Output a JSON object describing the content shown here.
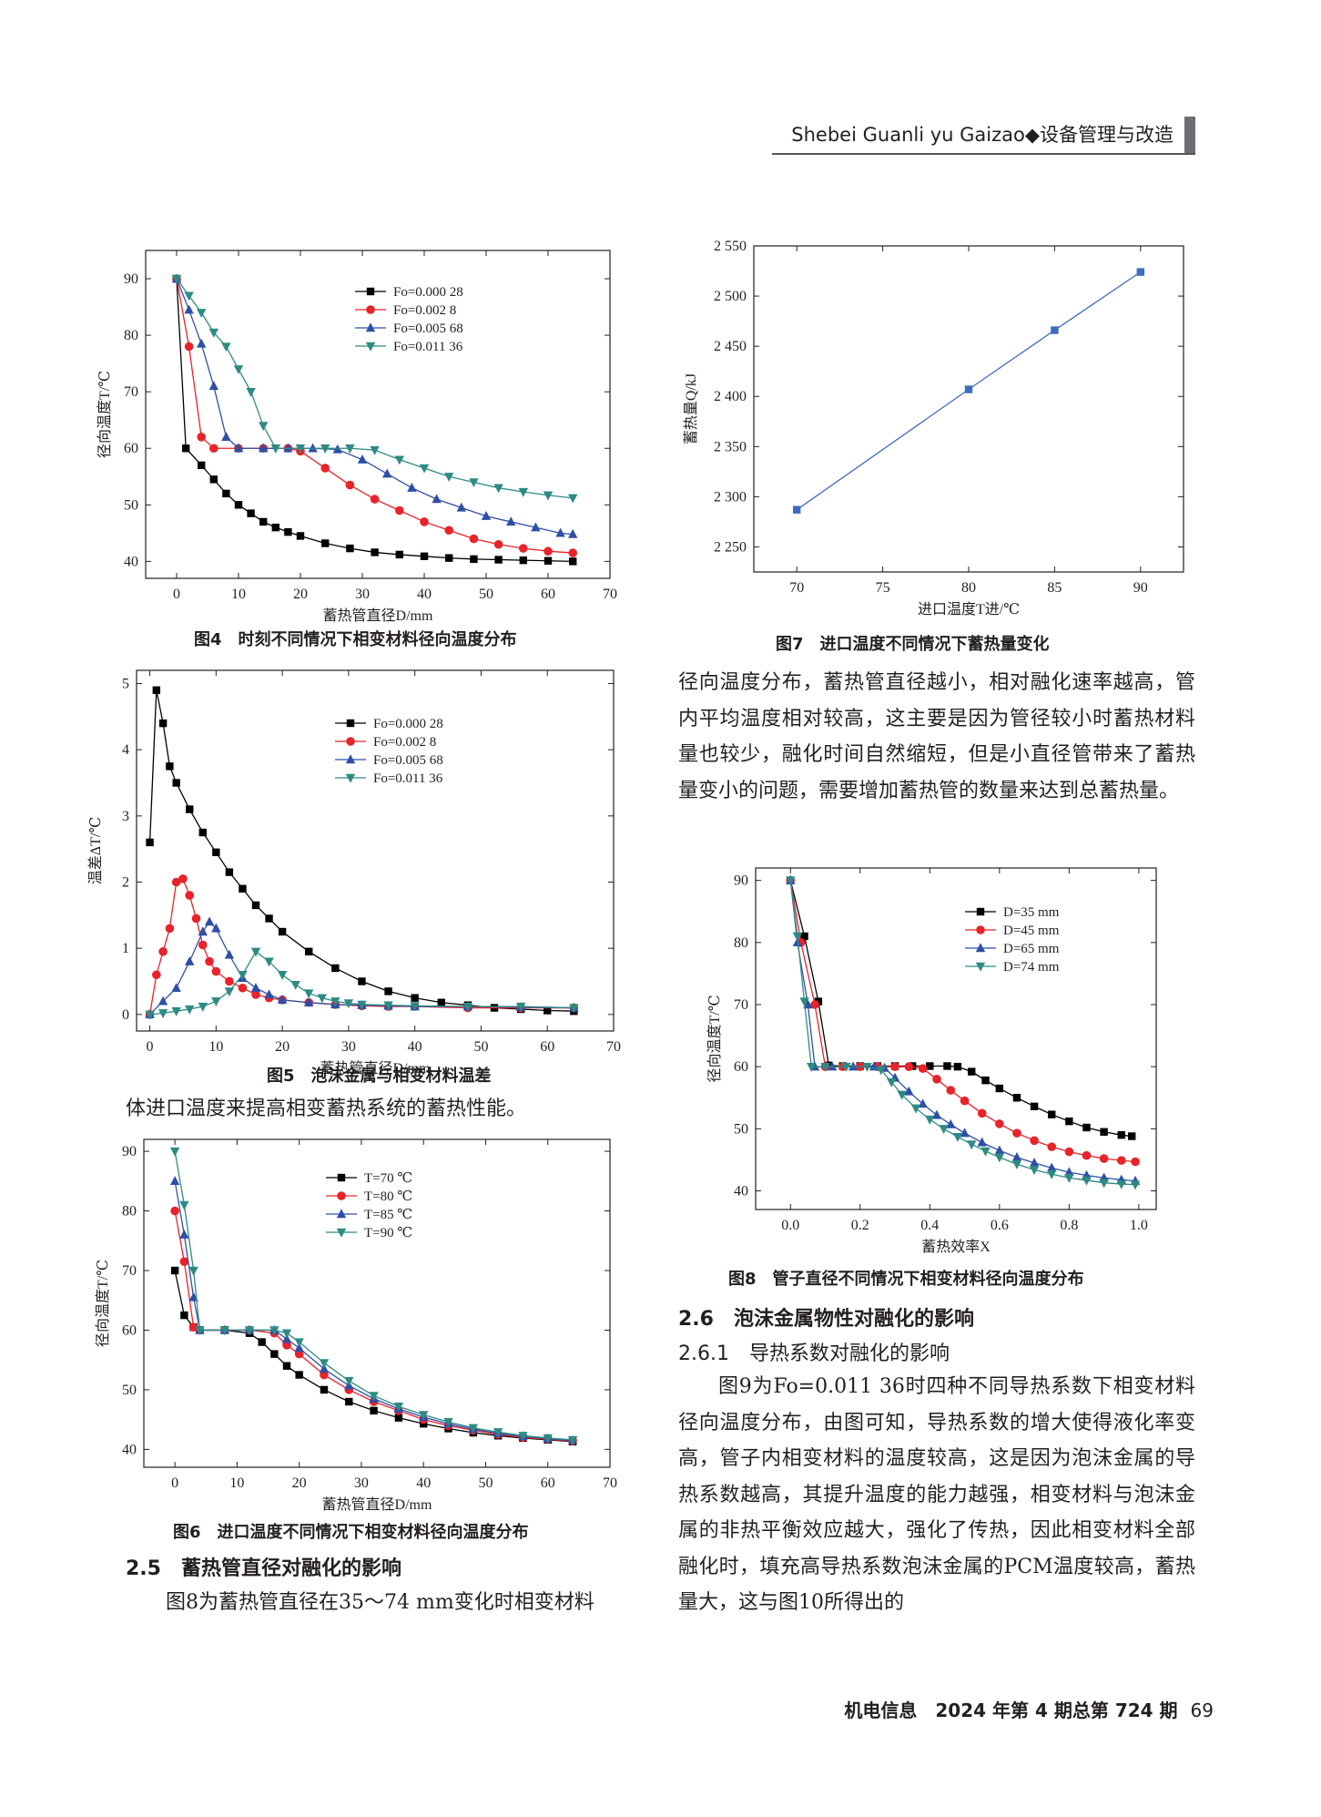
{
  "header": {
    "journal": "Shebei Guanli yu Gaizao◆设备管理与改造"
  },
  "figures": {
    "fig4": {
      "caption": "图4　时刻不同情况下相变材料径向温度分布"
    },
    "fig5": {
      "caption": "图5　泡沫金属与相变材料温差"
    },
    "fig6": {
      "caption": "图6　进口温度不同情况下相变材料径向温度分布"
    },
    "fig7": {
      "caption": "图7　进口温度不同情况下蓄热量变化"
    },
    "fig8": {
      "caption": "图8　管子直径不同情况下相变材料径向温度分布"
    }
  },
  "text": {
    "p_left_1": "体进口温度来提高相变蓄热系统的蓄热性能。",
    "sec_2_5": "2.5　蓄热管直径对融化的影响",
    "p_left_2": "图8为蓄热管直径在35～74 mm变化时相变材料",
    "p_right_1": "径向温度分布，蓄热管直径越小，相对融化速率越高，管内平均温度相对较高，这主要是因为管径较小时蓄热材料量也较少，融化时间自然缩短，但是小直径管带来了蓄热量变小的问题，需要增加蓄热管的数量来达到总蓄热量。",
    "sec_2_6": "2.6　泡沫金属物性对融化的影响",
    "sec_2_6_1": "2.6.1　导热系数对融化的影响",
    "p_right_2": "图9为Fo=0.011 36时四种不同导热系数下相变材料径向温度分布，由图可知，导热系数的增大使得液化率变高，管子内相变材料的温度较高，这是因为泡沫金属的导热系数越高，其提升温度的能力越强，相变材料与泡沫金属的非热平衡效应越大，强化了传热，因此相变材料全部融化时，填充高导热系数泡沫金属的PCM温度较高，蓄热量大，这与图10所得出的"
  },
  "footer": {
    "journal": "机电信息　2024 年第 4 期总第 724 期",
    "page": "69"
  },
  "colors": {
    "black": "#000000",
    "red": "#e8232a",
    "blue": "#2f4fa6",
    "teal": "#2e8b84",
    "line7": "#3d6cc0"
  },
  "chart_data": [
    {
      "id": "fig4",
      "type": "line",
      "xlabel": "蓄热管直径D/mm",
      "ylabel": "径向温度T/℃",
      "xlim": [
        -5,
        70
      ],
      "ylim": [
        37,
        95
      ],
      "xticks": [
        0,
        10,
        20,
        30,
        40,
        50,
        60,
        70
      ],
      "yticks": [
        40,
        50,
        60,
        70,
        80,
        90
      ],
      "legend": "top-right",
      "series": [
        {
          "name": "Fo=0.000 28",
          "marker": "square",
          "color": "#000000",
          "x": [
            0,
            1.5,
            4,
            6,
            8,
            10,
            12,
            14,
            16,
            18,
            20,
            24,
            28,
            32,
            36,
            40,
            44,
            48,
            52,
            56,
            60,
            64
          ],
          "y": [
            90,
            60,
            57,
            54.5,
            52,
            50,
            48.5,
            47,
            46,
            45.2,
            44.5,
            43.2,
            42.3,
            41.6,
            41.2,
            40.9,
            40.6,
            40.4,
            40.3,
            40.2,
            40.1,
            40
          ]
        },
        {
          "name": "Fo=0.002 8",
          "marker": "circle",
          "color": "#e8232a",
          "x": [
            0,
            2,
            4,
            6,
            10,
            14,
            18,
            20,
            24,
            28,
            32,
            36,
            40,
            44,
            48,
            52,
            56,
            60,
            64
          ],
          "y": [
            90,
            78,
            62,
            60,
            60,
            60,
            60,
            59.5,
            56.5,
            53.5,
            51,
            49,
            47,
            45.5,
            44,
            43,
            42.3,
            41.8,
            41.5
          ]
        },
        {
          "name": "Fo=0.005 68",
          "marker": "triangle-up",
          "color": "#2f4fa6",
          "x": [
            0,
            2,
            4,
            6,
            8,
            10,
            14,
            18,
            22,
            26,
            30,
            34,
            38,
            42,
            46,
            50,
            54,
            58,
            62,
            64
          ],
          "y": [
            90,
            84.5,
            78.5,
            71,
            62,
            60,
            60,
            60,
            60,
            59.8,
            58,
            55.5,
            53,
            51,
            49.5,
            48,
            47,
            46,
            45,
            44.8
          ]
        },
        {
          "name": "Fo=0.011 36",
          "marker": "triangle-down",
          "color": "#2e8b84",
          "x": [
            0,
            2,
            4,
            6,
            8,
            10,
            12,
            14,
            16,
            20,
            24,
            28,
            32,
            36,
            40,
            44,
            48,
            52,
            56,
            60,
            64
          ],
          "y": [
            90,
            87,
            84,
            80.5,
            78,
            74,
            70,
            64,
            60,
            60,
            60,
            60,
            59.7,
            58,
            56.5,
            55,
            54,
            53,
            52.3,
            51.7,
            51.2
          ]
        }
      ]
    },
    {
      "id": "fig5",
      "type": "line",
      "xlabel": "蓄热管直径D/mm",
      "ylabel": "温差ΔT/℃",
      "xlim": [
        -2,
        70
      ],
      "ylim": [
        -0.25,
        5.2
      ],
      "xticks": [
        0,
        10,
        20,
        30,
        40,
        50,
        60,
        70
      ],
      "yticks": [
        0,
        1,
        2,
        3,
        4,
        5
      ],
      "legend": "top-right",
      "series": [
        {
          "name": "Fo=0.000 28",
          "marker": "square",
          "color": "#000000",
          "x": [
            0,
            1,
            2,
            3,
            4,
            6,
            8,
            10,
            12,
            14,
            16,
            18,
            20,
            24,
            28,
            32,
            36,
            40,
            44,
            48,
            52,
            56,
            60,
            64
          ],
          "y": [
            2.6,
            4.9,
            4.4,
            3.75,
            3.5,
            3.1,
            2.75,
            2.45,
            2.15,
            1.9,
            1.65,
            1.45,
            1.25,
            0.95,
            0.7,
            0.5,
            0.35,
            0.25,
            0.18,
            0.14,
            0.1,
            0.08,
            0.06,
            0.05
          ]
        },
        {
          "name": "Fo=0.002 8",
          "marker": "circle",
          "color": "#e8232a",
          "x": [
            0,
            1,
            2,
            3,
            4,
            5,
            6,
            7,
            8,
            9,
            10,
            12,
            14,
            16,
            18,
            20,
            24,
            28,
            32,
            36,
            40,
            48,
            56,
            64
          ],
          "y": [
            0,
            0.6,
            0.95,
            1.3,
            2.0,
            2.05,
            1.8,
            1.45,
            1.05,
            0.8,
            0.65,
            0.5,
            0.4,
            0.3,
            0.25,
            0.22,
            0.18,
            0.15,
            0.13,
            0.12,
            0.12,
            0.1,
            0.1,
            0.1
          ]
        },
        {
          "name": "Fo=0.005 68",
          "marker": "triangle-up",
          "color": "#2f4fa6",
          "x": [
            0,
            2,
            4,
            6,
            8,
            9,
            10,
            12,
            14,
            16,
            18,
            20,
            24,
            28,
            32,
            36,
            40,
            48,
            56,
            64
          ],
          "y": [
            0,
            0.2,
            0.4,
            0.8,
            1.25,
            1.4,
            1.3,
            0.9,
            0.55,
            0.4,
            0.3,
            0.22,
            0.18,
            0.15,
            0.14,
            0.13,
            0.12,
            0.12,
            0.11,
            0.1
          ]
        },
        {
          "name": "Fo=0.011 36",
          "marker": "triangle-down",
          "color": "#2e8b84",
          "x": [
            0,
            2,
            4,
            6,
            8,
            10,
            12,
            14,
            16,
            18,
            20,
            22,
            24,
            26,
            28,
            30,
            32,
            36,
            40,
            48,
            56,
            64
          ],
          "y": [
            0,
            0.02,
            0.05,
            0.08,
            0.12,
            0.2,
            0.35,
            0.6,
            0.95,
            0.8,
            0.6,
            0.45,
            0.32,
            0.25,
            0.2,
            0.17,
            0.15,
            0.14,
            0.13,
            0.12,
            0.12,
            0.1
          ]
        }
      ]
    },
    {
      "id": "fig6",
      "type": "line",
      "xlabel": "蓄热管直径D/mm",
      "ylabel": "径向温度T/℃",
      "xlim": [
        -5,
        70
      ],
      "ylim": [
        37,
        92
      ],
      "xticks": [
        0,
        10,
        20,
        30,
        40,
        50,
        60,
        70
      ],
      "yticks": [
        40,
        50,
        60,
        70,
        80,
        90
      ],
      "legend": "top-right",
      "series": [
        {
          "name": "T=70 ℃",
          "marker": "square",
          "color": "#000000",
          "x": [
            0,
            1.5,
            3,
            4,
            8,
            12,
            14,
            16,
            18,
            20,
            24,
            28,
            32,
            36,
            40,
            44,
            48,
            52,
            56,
            60,
            64
          ],
          "y": [
            70,
            62.5,
            60.5,
            60,
            60,
            59.5,
            58,
            56,
            54,
            52.5,
            50,
            48,
            46.5,
            45.3,
            44.3,
            43.5,
            42.8,
            42.3,
            41.9,
            41.6,
            41.3
          ]
        },
        {
          "name": "T=80 ℃",
          "marker": "circle",
          "color": "#e8232a",
          "x": [
            0,
            1.5,
            3,
            4,
            8,
            12,
            16,
            18,
            20,
            24,
            28,
            32,
            36,
            40,
            44,
            48,
            52,
            56,
            60,
            64
          ],
          "y": [
            80,
            71.5,
            60.5,
            60,
            60,
            60,
            59.5,
            57.5,
            56,
            52.5,
            50,
            48,
            46.5,
            45,
            44,
            43.2,
            42.5,
            42,
            41.7,
            41.4
          ]
        },
        {
          "name": "T=85 ℃",
          "marker": "triangle-up",
          "color": "#2f4fa6",
          "x": [
            0,
            1.5,
            3,
            4,
            8,
            12,
            16,
            18,
            20,
            24,
            28,
            32,
            36,
            40,
            44,
            48,
            52,
            56,
            60,
            64
          ],
          "y": [
            85,
            76,
            65.5,
            60,
            60,
            60,
            60,
            58.5,
            57,
            53.5,
            50.7,
            48.5,
            46.8,
            45.4,
            44.3,
            43.4,
            42.7,
            42.2,
            41.8,
            41.5
          ]
        },
        {
          "name": "T=90 ℃",
          "marker": "triangle-down",
          "color": "#2e8b84",
          "x": [
            0,
            1.5,
            3,
            4,
            8,
            12,
            16,
            18,
            20,
            24,
            28,
            32,
            36,
            40,
            44,
            48,
            52,
            56,
            60,
            64
          ],
          "y": [
            90,
            81,
            70,
            60,
            60,
            60,
            60,
            59.5,
            58,
            54.5,
            51.5,
            49,
            47.2,
            45.8,
            44.6,
            43.6,
            42.9,
            42.3,
            41.9,
            41.6
          ]
        }
      ]
    },
    {
      "id": "fig7",
      "type": "line",
      "xlabel": "进口温度T进/℃",
      "ylabel": "蓄热量Q/kJ",
      "xlim": [
        67.5,
        92.5
      ],
      "ylim": [
        2225,
        2550
      ],
      "xticks": [
        70,
        75,
        80,
        85,
        90
      ],
      "yticks": [
        2250,
        2300,
        2350,
        2400,
        2450,
        2500,
        2550
      ],
      "ytick_labels": [
        "2 250",
        "2 300",
        "2 350",
        "2 400",
        "2 450",
        "2 500",
        "2 550"
      ],
      "series": [
        {
          "name": "",
          "marker": "square",
          "color": "#3d6cc0",
          "x": [
            70,
            80,
            85,
            90
          ],
          "y": [
            2287,
            2407,
            2466,
            2524
          ]
        }
      ]
    },
    {
      "id": "fig8",
      "type": "line",
      "xlabel": "蓄热效率X",
      "ylabel": "径向温度T/℃",
      "xlim": [
        -0.1,
        1.05
      ],
      "ylim": [
        37,
        92
      ],
      "xticks": [
        0.0,
        0.2,
        0.4,
        0.6,
        0.8,
        1.0
      ],
      "xtick_labels": [
        "0.0",
        "0.2",
        "0.4",
        "0.6",
        "0.8",
        "1.0"
      ],
      "yticks": [
        40,
        50,
        60,
        70,
        80,
        90
      ],
      "legend": "top-right",
      "series": [
        {
          "name": "D=35 mm",
          "marker": "square",
          "color": "#000000",
          "x": [
            0,
            0.04,
            0.08,
            0.11,
            0.15,
            0.2,
            0.25,
            0.3,
            0.35,
            0.4,
            0.45,
            0.48,
            0.52,
            0.56,
            0.6,
            0.65,
            0.7,
            0.75,
            0.8,
            0.85,
            0.9,
            0.95,
            0.98
          ],
          "y": [
            90,
            81,
            70.5,
            60.2,
            60.1,
            60.1,
            60.1,
            60.1,
            60.1,
            60.1,
            60.1,
            60,
            59.2,
            57.8,
            56.5,
            55,
            53.6,
            52.3,
            51.2,
            50.2,
            49.5,
            49,
            48.8
          ]
        },
        {
          "name": "D=45 mm",
          "marker": "circle",
          "color": "#e8232a",
          "x": [
            0,
            0.03,
            0.07,
            0.1,
            0.15,
            0.2,
            0.25,
            0.3,
            0.34,
            0.38,
            0.42,
            0.46,
            0.5,
            0.55,
            0.6,
            0.65,
            0.7,
            0.75,
            0.8,
            0.85,
            0.9,
            0.95,
            0.99
          ],
          "y": [
            90,
            80,
            70,
            60,
            60,
            60,
            60,
            60,
            60,
            59.7,
            58,
            56.2,
            54.5,
            52.5,
            50.8,
            49.3,
            48.1,
            47.1,
            46.3,
            45.7,
            45.2,
            44.9,
            44.7
          ]
        },
        {
          "name": "D=65 mm",
          "marker": "triangle-up",
          "color": "#2f4fa6",
          "x": [
            0,
            0.02,
            0.05,
            0.07,
            0.12,
            0.18,
            0.24,
            0.27,
            0.3,
            0.34,
            0.38,
            0.42,
            0.46,
            0.5,
            0.55,
            0.6,
            0.65,
            0.7,
            0.75,
            0.8,
            0.85,
            0.9,
            0.95,
            0.99
          ],
          "y": [
            90,
            80,
            70,
            60,
            60,
            60,
            60,
            59.8,
            58.2,
            56,
            54,
            52.2,
            50.7,
            49.3,
            47.8,
            46.5,
            45.4,
            44.5,
            43.7,
            43,
            42.5,
            42.1,
            41.8,
            41.6
          ]
        },
        {
          "name": "D=74 mm",
          "marker": "triangle-down",
          "color": "#2e8b84",
          "x": [
            0,
            0.02,
            0.04,
            0.06,
            0.1,
            0.16,
            0.22,
            0.26,
            0.29,
            0.32,
            0.36,
            0.4,
            0.44,
            0.48,
            0.52,
            0.56,
            0.6,
            0.65,
            0.7,
            0.75,
            0.8,
            0.85,
            0.9,
            0.95,
            0.99
          ],
          "y": [
            90,
            81,
            70.5,
            60,
            60,
            60,
            60,
            59.5,
            57.5,
            55.5,
            53.3,
            51.5,
            50,
            48.7,
            47.5,
            46.4,
            45.4,
            44.3,
            43.4,
            42.7,
            42.1,
            41.7,
            41.3,
            41.1,
            41
          ]
        }
      ]
    }
  ]
}
